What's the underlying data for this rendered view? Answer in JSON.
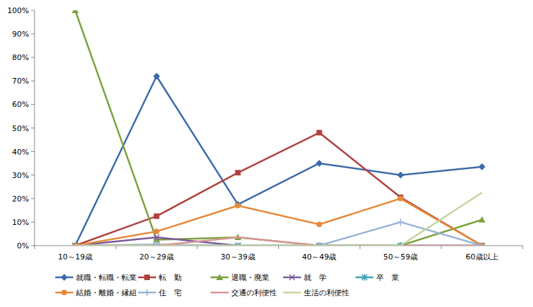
{
  "chart_data": {
    "type": "line",
    "categories": [
      "10～19歳",
      "20～29歳",
      "30～39歳",
      "40～49歳",
      "50～59歳",
      "60歳以上"
    ],
    "ylim": [
      0,
      100
    ],
    "yticks": [
      {
        "value": 0,
        "label": "0%"
      },
      {
        "value": 10,
        "label": "10%"
      },
      {
        "value": 20,
        "label": "20%"
      },
      {
        "value": 30,
        "label": "30%"
      },
      {
        "value": 40,
        "label": "40%"
      },
      {
        "value": 50,
        "label": "50%"
      },
      {
        "value": 60,
        "label": "60%"
      },
      {
        "value": 70,
        "label": "70%"
      },
      {
        "value": 80,
        "label": "80%"
      },
      {
        "value": 90,
        "label": "90%"
      },
      {
        "value": 100,
        "label": "100%"
      }
    ],
    "grid": false,
    "legend": "bottom",
    "series": [
      {
        "name": "就職・転職・転業",
        "color": "#3c6aa8",
        "marker": "diamond",
        "values": [
          0,
          72,
          17.5,
          35,
          30,
          33.5
        ]
      },
      {
        "name": "転　勤",
        "color": "#b0403d",
        "marker": "square",
        "values": [
          0,
          12.5,
          31,
          48,
          20.5,
          0
        ]
      },
      {
        "name": "退職・廃業",
        "color": "#7aa23c",
        "marker": "triangle",
        "values": [
          100,
          2.5,
          3.5,
          0,
          0,
          11
        ]
      },
      {
        "name": "就　学",
        "color": "#7a5a9a",
        "marker": "x",
        "values": [
          0,
          3.5,
          0,
          0,
          0,
          0
        ]
      },
      {
        "name": "卒　業",
        "color": "#3aa0b8",
        "marker": "star",
        "values": [
          0,
          0,
          0,
          0,
          0,
          0
        ]
      },
      {
        "name": "結婚・離婚・縁組",
        "color": "#e68a3a",
        "marker": "circle",
        "values": [
          0,
          6,
          17,
          9,
          20,
          0
        ]
      },
      {
        "name": "住　宅",
        "color": "#95b3d7",
        "marker": "plus",
        "values": [
          0,
          0.5,
          0,
          0,
          10,
          0
        ]
      },
      {
        "name": "交通の利便性",
        "color": "#d99694",
        "marker": "none",
        "values": [
          0,
          0,
          3.5,
          0,
          0,
          0
        ]
      },
      {
        "name": "生活の利便性",
        "color": "#c3d69b",
        "marker": "none",
        "values": [
          0,
          0,
          0,
          0,
          0,
          22.5
        ]
      }
    ]
  }
}
